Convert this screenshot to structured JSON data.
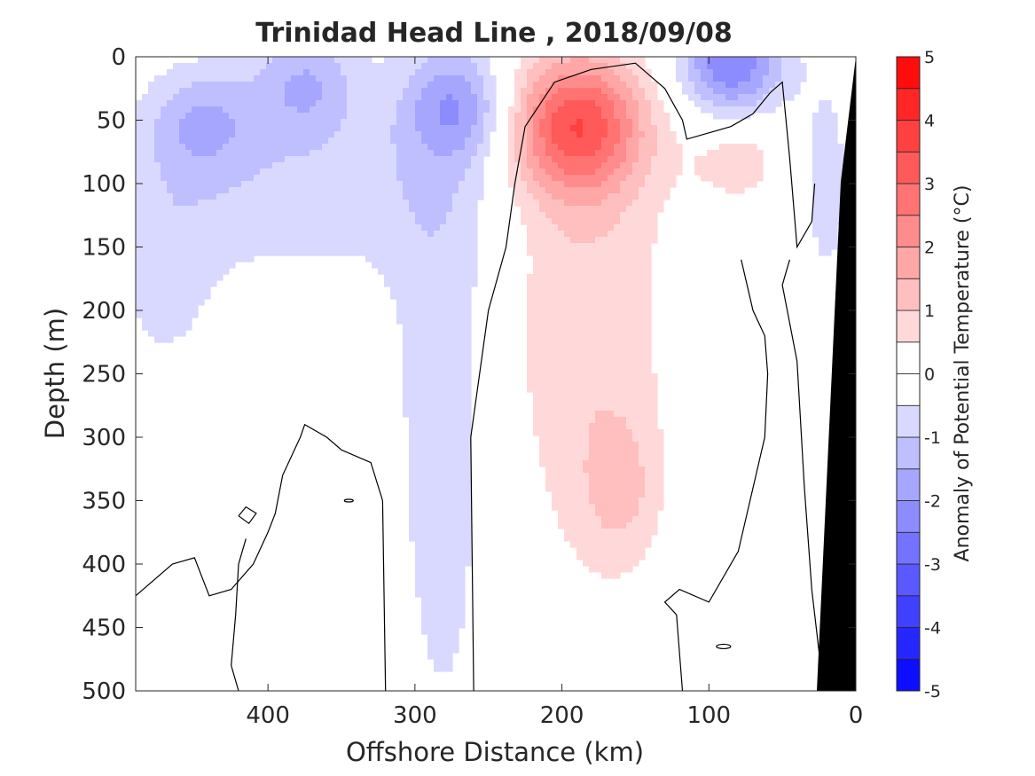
{
  "chart_data": {
    "type": "heatmap",
    "subtype": "filled-contour section",
    "title": "Trinidad Head Line , 2018/09/08",
    "xlabel": "Offshore Distance (km)",
    "ylabel": "Depth (m)",
    "colorbar_label": "Anomaly of Potential Temperature (°C)",
    "xlim": [
      490,
      0
    ],
    "ylim": [
      500,
      0
    ],
    "x_direction": "reversed",
    "y_direction": "reversed",
    "xticks": [
      400,
      300,
      200,
      100,
      0
    ],
    "yticks": [
      0,
      50,
      100,
      150,
      200,
      250,
      300,
      350,
      400,
      450,
      500
    ],
    "colorbar": {
      "range": [
        -5,
        5
      ],
      "step": 0.5,
      "ticks": [
        5,
        4,
        3,
        2,
        1,
        0,
        -1,
        -2,
        -3,
        -4,
        -5
      ],
      "colormap": "blue-white-red"
    },
    "zero_contour": "black line",
    "bathymetry_fill": "black",
    "features": [
      {
        "label": "warm core",
        "x": 190,
        "y": 55,
        "value": 3.0
      },
      {
        "label": "cold core",
        "x": 85,
        "y": 5,
        "value": -2.5
      },
      {
        "label": "cold core",
        "x": 270,
        "y": 40,
        "value": -1.5
      },
      {
        "label": "cold core",
        "x": 375,
        "y": 20,
        "value": -1.3
      },
      {
        "label": "cold core",
        "x": 445,
        "y": 50,
        "value": -1.2
      }
    ]
  },
  "colors": {
    "cold_max": "#0000ff",
    "warm_max": "#ff0000",
    "neutral": "#ffffff",
    "land": "#000000",
    "contour": "#000000"
  }
}
